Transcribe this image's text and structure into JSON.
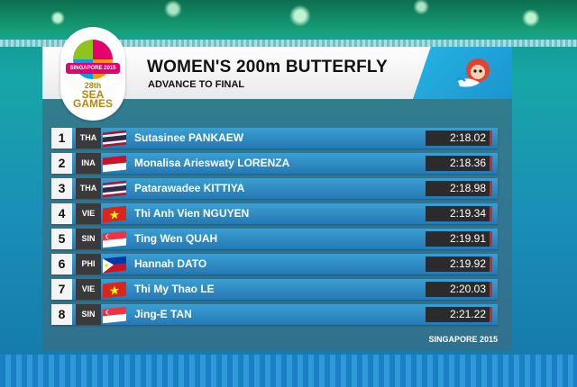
{
  "logo": {
    "ribbon": "SINGAPORE 2015",
    "games_line1": "28th",
    "games_line2": "SEA",
    "games_line3": "GAMES"
  },
  "header": {
    "title": "WOMEN'S 200m BUTTERFLY",
    "subtitle": "ADVANCE TO FINAL"
  },
  "rows": [
    {
      "pos": "1",
      "country": "THA",
      "flag": "thailand-flag",
      "name": "Sutasinee PANKAEW",
      "time": "2:18.02"
    },
    {
      "pos": "2",
      "country": "INA",
      "flag": "indonesia-flag",
      "name": "Monalisa Arieswaty LORENZA",
      "time": "2:18.36"
    },
    {
      "pos": "3",
      "country": "THA",
      "flag": "thailand-flag",
      "name": "Patarawadee KITTIYA",
      "time": "2:18.98"
    },
    {
      "pos": "4",
      "country": "VIE",
      "flag": "vietnam-flag",
      "name": "Thi Anh Vien NGUYEN",
      "time": "2:19.34"
    },
    {
      "pos": "5",
      "country": "SIN",
      "flag": "singapore-flag",
      "name": "Ting Wen QUAH",
      "time": "2:19.91"
    },
    {
      "pos": "6",
      "country": "PHI",
      "flag": "philippines-flag",
      "name": "Hannah DATO",
      "time": "2:19.92"
    },
    {
      "pos": "7",
      "country": "VIE",
      "flag": "vietnam-flag",
      "name": "Thi My Thao LE",
      "time": "2:20.03"
    },
    {
      "pos": "8",
      "country": "SIN",
      "flag": "singapore-flag",
      "name": "Jing-E TAN",
      "time": "2:21.22"
    }
  ],
  "footer": "SINGAPORE 2015",
  "colors": {
    "row_blue": "#2f8cc6",
    "time_accent": "#c72b2b",
    "header_accent": "#27b4e3"
  }
}
